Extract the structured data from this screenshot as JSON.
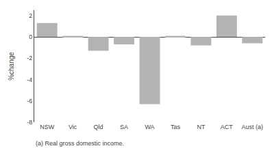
{
  "chart_data": {
    "type": "bar",
    "categories": [
      "NSW",
      "Vic",
      "Qld",
      "SA",
      "WA",
      "Tas",
      "NT",
      "ACT",
      "Aust (a)"
    ],
    "values": [
      1.3,
      0.1,
      -1.3,
      -0.7,
      -6.3,
      0.1,
      -0.8,
      2.0,
      -0.6
    ],
    "color": "#b3b3b3",
    "ylabel": "%change",
    "annotations": [
      "(a) Real gross domestic income."
    ],
    "ylim": [
      -8,
      2.5
    ],
    "yticks": [
      -8,
      -6,
      -4,
      -2,
      0,
      2
    ],
    "grid": false
  }
}
